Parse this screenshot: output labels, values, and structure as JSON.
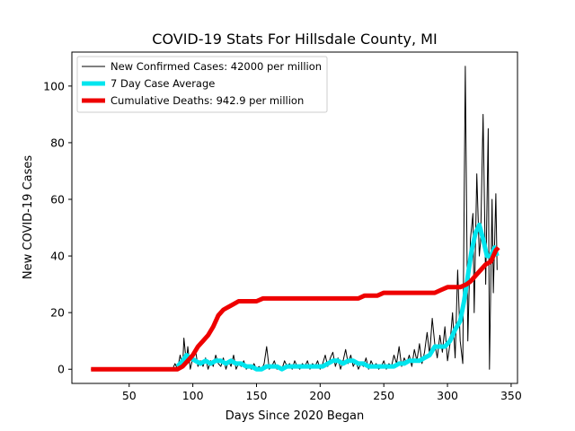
{
  "chart_data": {
    "type": "line",
    "title": "COVID-19 Stats For Hillsdale County, MI",
    "xlabel": "Days Since 2020 Began",
    "ylabel": "New COVID-19 Cases",
    "xlim": [
      5,
      355
    ],
    "ylim": [
      -5,
      112
    ],
    "xticks": [
      50,
      100,
      150,
      200,
      250,
      300,
      350
    ],
    "yticks": [
      0,
      20,
      40,
      60,
      80,
      100
    ],
    "grid": false,
    "legend_position": "top-left",
    "series": [
      {
        "name": "New Confirmed Cases: 42000 per million",
        "color": "#000000",
        "points": [
          [
            20,
            0
          ],
          [
            84,
            0
          ],
          [
            86,
            2
          ],
          [
            88,
            0
          ],
          [
            90,
            5
          ],
          [
            92,
            1
          ],
          [
            93,
            11
          ],
          [
            95,
            2
          ],
          [
            96,
            8
          ],
          [
            98,
            0
          ],
          [
            100,
            4
          ],
          [
            102,
            7
          ],
          [
            104,
            1
          ],
          [
            106,
            3
          ],
          [
            108,
            1
          ],
          [
            110,
            4
          ],
          [
            112,
            0
          ],
          [
            114,
            3
          ],
          [
            116,
            1
          ],
          [
            118,
            5
          ],
          [
            120,
            2
          ],
          [
            122,
            1
          ],
          [
            124,
            4
          ],
          [
            126,
            0
          ],
          [
            128,
            3
          ],
          [
            130,
            1
          ],
          [
            132,
            5
          ],
          [
            134,
            0
          ],
          [
            136,
            2
          ],
          [
            138,
            1
          ],
          [
            140,
            3
          ],
          [
            142,
            0
          ],
          [
            144,
            1
          ],
          [
            146,
            0
          ],
          [
            148,
            2
          ],
          [
            150,
            0
          ],
          [
            152,
            1
          ],
          [
            154,
            0
          ],
          [
            156,
            2
          ],
          [
            158,
            8
          ],
          [
            160,
            0
          ],
          [
            162,
            1
          ],
          [
            164,
            3
          ],
          [
            166,
            0
          ],
          [
            168,
            1
          ],
          [
            170,
            0
          ],
          [
            172,
            3
          ],
          [
            174,
            1
          ],
          [
            176,
            2
          ],
          [
            178,
            0
          ],
          [
            180,
            3
          ],
          [
            182,
            1
          ],
          [
            184,
            0
          ],
          [
            186,
            2
          ],
          [
            188,
            1
          ],
          [
            190,
            3
          ],
          [
            192,
            0
          ],
          [
            194,
            2
          ],
          [
            196,
            1
          ],
          [
            198,
            3
          ],
          [
            200,
            0
          ],
          [
            202,
            2
          ],
          [
            204,
            5
          ],
          [
            206,
            1
          ],
          [
            208,
            4
          ],
          [
            210,
            6
          ],
          [
            212,
            1
          ],
          [
            214,
            4
          ],
          [
            216,
            0
          ],
          [
            218,
            3
          ],
          [
            220,
            7
          ],
          [
            222,
            2
          ],
          [
            224,
            5
          ],
          [
            226,
            1
          ],
          [
            228,
            3
          ],
          [
            230,
            0
          ],
          [
            232,
            2
          ],
          [
            234,
            1
          ],
          [
            236,
            4
          ],
          [
            238,
            0
          ],
          [
            240,
            3
          ],
          [
            242,
            1
          ],
          [
            244,
            2
          ],
          [
            246,
            0
          ],
          [
            248,
            1
          ],
          [
            250,
            3
          ],
          [
            252,
            0
          ],
          [
            254,
            2
          ],
          [
            256,
            1
          ],
          [
            258,
            5
          ],
          [
            260,
            2
          ],
          [
            262,
            8
          ],
          [
            264,
            1
          ],
          [
            266,
            4
          ],
          [
            268,
            2
          ],
          [
            270,
            5
          ],
          [
            272,
            1
          ],
          [
            274,
            7
          ],
          [
            276,
            3
          ],
          [
            278,
            9
          ],
          [
            280,
            2
          ],
          [
            282,
            6
          ],
          [
            284,
            13
          ],
          [
            286,
            5
          ],
          [
            288,
            18
          ],
          [
            290,
            9
          ],
          [
            292,
            4
          ],
          [
            294,
            12
          ],
          [
            296,
            6
          ],
          [
            298,
            15
          ],
          [
            300,
            3
          ],
          [
            302,
            9
          ],
          [
            304,
            20
          ],
          [
            306,
            4
          ],
          [
            308,
            35
          ],
          [
            310,
            10
          ],
          [
            312,
            2
          ],
          [
            314,
            107
          ],
          [
            316,
            10
          ],
          [
            318,
            46
          ],
          [
            320,
            55
          ],
          [
            321,
            20
          ],
          [
            323,
            69
          ],
          [
            325,
            40
          ],
          [
            326,
            45
          ],
          [
            328,
            90
          ],
          [
            330,
            30
          ],
          [
            332,
            85
          ],
          [
            333,
            0
          ],
          [
            335,
            60
          ],
          [
            336,
            27
          ],
          [
            338,
            62
          ],
          [
            339,
            35
          ]
        ]
      },
      {
        "name": "7 Day Case Average",
        "color": "#00e5ee",
        "points": [
          [
            88,
            1
          ],
          [
            92,
            3
          ],
          [
            95,
            5
          ],
          [
            98,
            4
          ],
          [
            102,
            3
          ],
          [
            106,
            2
          ],
          [
            110,
            3
          ],
          [
            114,
            2
          ],
          [
            118,
            3
          ],
          [
            122,
            3
          ],
          [
            126,
            2
          ],
          [
            130,
            3
          ],
          [
            134,
            2
          ],
          [
            138,
            2
          ],
          [
            142,
            1
          ],
          [
            146,
            1
          ],
          [
            150,
            0
          ],
          [
            154,
            0
          ],
          [
            158,
            1
          ],
          [
            162,
            1
          ],
          [
            166,
            1
          ],
          [
            170,
            0
          ],
          [
            174,
            1
          ],
          [
            178,
            1
          ],
          [
            182,
            1
          ],
          [
            186,
            1
          ],
          [
            190,
            1
          ],
          [
            194,
            1
          ],
          [
            198,
            1
          ],
          [
            202,
            1
          ],
          [
            206,
            2
          ],
          [
            210,
            3
          ],
          [
            214,
            3
          ],
          [
            218,
            2
          ],
          [
            222,
            3
          ],
          [
            226,
            3
          ],
          [
            230,
            2
          ],
          [
            234,
            2
          ],
          [
            238,
            1
          ],
          [
            242,
            1
          ],
          [
            246,
            1
          ],
          [
            250,
            1
          ],
          [
            254,
            1
          ],
          [
            258,
            1
          ],
          [
            262,
            2
          ],
          [
            266,
            2
          ],
          [
            270,
            3
          ],
          [
            274,
            3
          ],
          [
            278,
            3
          ],
          [
            282,
            4
          ],
          [
            286,
            5
          ],
          [
            290,
            8
          ],
          [
            294,
            8
          ],
          [
            298,
            8
          ],
          [
            302,
            10
          ],
          [
            306,
            14
          ],
          [
            310,
            17
          ],
          [
            313,
            24
          ],
          [
            316,
            33
          ],
          [
            319,
            42
          ],
          [
            322,
            48
          ],
          [
            325,
            51
          ],
          [
            328,
            46
          ],
          [
            331,
            40
          ],
          [
            334,
            40
          ],
          [
            337,
            43
          ],
          [
            339,
            40
          ]
        ]
      },
      {
        "name": "Cumulative Deaths: 942.9 per million",
        "color": "#ee0000",
        "points": [
          [
            20,
            0
          ],
          [
            88,
            0
          ],
          [
            92,
            1
          ],
          [
            96,
            3
          ],
          [
            100,
            5
          ],
          [
            104,
            8
          ],
          [
            108,
            10
          ],
          [
            112,
            12
          ],
          [
            116,
            15
          ],
          [
            120,
            19
          ],
          [
            124,
            21
          ],
          [
            128,
            22
          ],
          [
            132,
            23
          ],
          [
            136,
            24
          ],
          [
            140,
            24
          ],
          [
            145,
            24
          ],
          [
            150,
            24
          ],
          [
            155,
            25
          ],
          [
            160,
            25
          ],
          [
            165,
            25
          ],
          [
            170,
            25
          ],
          [
            180,
            25
          ],
          [
            190,
            25
          ],
          [
            200,
            25
          ],
          [
            210,
            25
          ],
          [
            220,
            25
          ],
          [
            230,
            25
          ],
          [
            235,
            26
          ],
          [
            240,
            26
          ],
          [
            245,
            26
          ],
          [
            250,
            27
          ],
          [
            260,
            27
          ],
          [
            270,
            27
          ],
          [
            280,
            27
          ],
          [
            290,
            27
          ],
          [
            295,
            28
          ],
          [
            300,
            29
          ],
          [
            305,
            29
          ],
          [
            310,
            29
          ],
          [
            315,
            30
          ],
          [
            318,
            31
          ],
          [
            322,
            33
          ],
          [
            326,
            35
          ],
          [
            330,
            37
          ],
          [
            334,
            38
          ],
          [
            336,
            40
          ],
          [
            338,
            42
          ],
          [
            340,
            43
          ]
        ]
      }
    ]
  }
}
